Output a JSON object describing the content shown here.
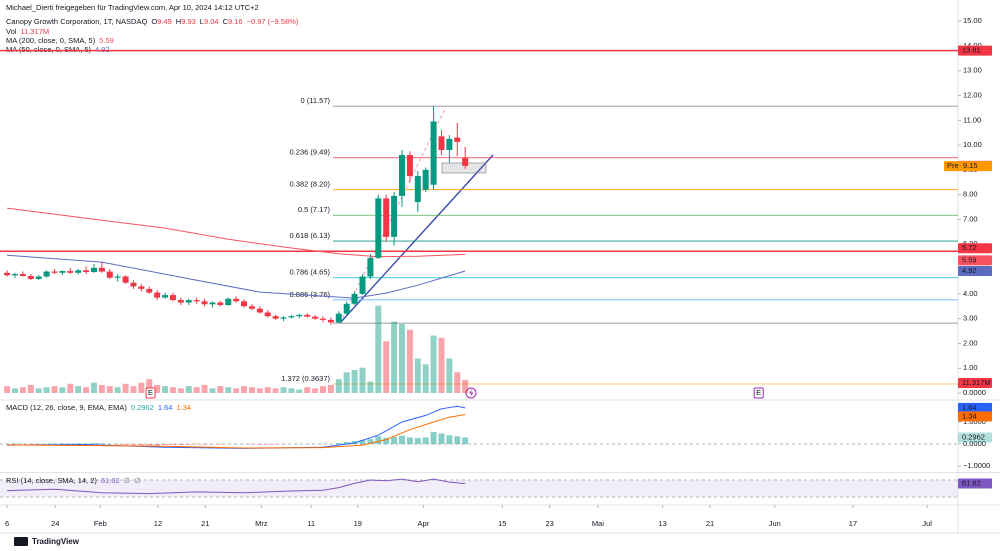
{
  "header": {
    "shared_by": "Michael_Dierti freigegeben für TradingView.com, Apr 10, 2024 14:12 UTC+2",
    "footer": "TradingView"
  },
  "chart_data": [
    {
      "type": "candlestick",
      "title": "Canopy Growth Corporation, 1T, NASDAQ",
      "ohlc_letters": [
        "O",
        "H",
        "L",
        "C"
      ],
      "change": "−0.97 (−9.58%)",
      "up_color": "#089981",
      "down_color": "#f23645",
      "x": [
        0,
        1,
        2,
        3,
        4,
        5,
        6,
        7,
        8,
        9,
        10,
        11,
        12,
        13,
        14,
        15,
        16,
        17,
        18,
        19,
        20,
        21,
        22,
        23,
        24,
        25,
        26,
        27,
        28,
        29,
        30,
        31,
        32,
        33,
        34,
        35,
        36,
        37,
        38,
        39,
        40,
        41,
        42,
        43,
        44,
        45,
        46,
        47,
        48,
        49,
        50,
        51,
        52,
        53,
        54,
        55,
        56,
        57,
        58
      ],
      "ohlc": [
        [
          4.85,
          4.95,
          4.7,
          4.75
        ],
        [
          4.75,
          4.85,
          4.65,
          4.8
        ],
        [
          4.8,
          4.9,
          4.7,
          4.72
        ],
        [
          4.72,
          4.8,
          4.55,
          4.6
        ],
        [
          4.6,
          4.75,
          4.55,
          4.7
        ],
        [
          4.7,
          4.95,
          4.65,
          4.9
        ],
        [
          4.9,
          5.0,
          4.8,
          4.85
        ],
        [
          4.85,
          4.95,
          4.75,
          4.92
        ],
        [
          4.92,
          5.05,
          4.8,
          4.85
        ],
        [
          4.85,
          5.0,
          4.78,
          4.95
        ],
        [
          4.95,
          5.1,
          4.8,
          4.88
        ],
        [
          4.88,
          5.2,
          4.85,
          5.05
        ],
        [
          5.05,
          5.28,
          4.85,
          4.9
        ],
        [
          4.9,
          5.0,
          4.6,
          4.65
        ],
        [
          4.65,
          4.8,
          4.5,
          4.7
        ],
        [
          4.7,
          4.75,
          4.4,
          4.45
        ],
        [
          4.45,
          4.55,
          4.2,
          4.3
        ],
        [
          4.3,
          4.4,
          4.1,
          4.2
        ],
        [
          4.2,
          4.3,
          4.0,
          4.05
        ],
        [
          4.05,
          4.15,
          3.75,
          3.85
        ],
        [
          3.85,
          4.05,
          3.8,
          3.95
        ],
        [
          3.95,
          4.05,
          3.7,
          3.75
        ],
        [
          3.75,
          3.85,
          3.55,
          3.65
        ],
        [
          3.65,
          3.8,
          3.55,
          3.75
        ],
        [
          3.75,
          3.85,
          3.6,
          3.7
        ],
        [
          3.7,
          3.8,
          3.5,
          3.58
        ],
        [
          3.58,
          3.7,
          3.45,
          3.65
        ],
        [
          3.65,
          3.72,
          3.5,
          3.55
        ],
        [
          3.55,
          3.85,
          3.52,
          3.8
        ],
        [
          3.8,
          3.9,
          3.65,
          3.7
        ],
        [
          3.7,
          3.78,
          3.45,
          3.5
        ],
        [
          3.5,
          3.6,
          3.35,
          3.4
        ],
        [
          3.4,
          3.5,
          3.2,
          3.25
        ],
        [
          3.25,
          3.35,
          3.05,
          3.1
        ],
        [
          3.1,
          3.15,
          2.95,
          3.0
        ],
        [
          3.0,
          3.1,
          2.9,
          3.05
        ],
        [
          3.05,
          3.15,
          3.0,
          3.1
        ],
        [
          3.1,
          3.2,
          3.02,
          3.15
        ],
        [
          3.15,
          3.22,
          3.05,
          3.08
        ],
        [
          3.08,
          3.15,
          2.95,
          3.0
        ],
        [
          3.0,
          3.1,
          2.85,
          2.95
        ],
        [
          2.95,
          3.05,
          2.75,
          2.85
        ],
        [
          2.85,
          3.3,
          2.82,
          3.2
        ],
        [
          3.2,
          3.7,
          3.15,
          3.6
        ],
        [
          3.6,
          4.1,
          3.55,
          4.0
        ],
        [
          4.0,
          4.8,
          3.95,
          4.7
        ],
        [
          4.7,
          5.6,
          4.6,
          5.45
        ],
        [
          5.45,
          8.0,
          5.4,
          7.85
        ],
        [
          7.85,
          8.0,
          6.1,
          6.3
        ],
        [
          6.3,
          8.1,
          5.95,
          7.95
        ],
        [
          7.95,
          9.8,
          7.5,
          9.6
        ],
        [
          9.6,
          9.75,
          8.5,
          8.75
        ],
        [
          7.7,
          8.95,
          7.3,
          8.75
        ],
        [
          8.2,
          9.1,
          8.1,
          9.0
        ],
        [
          8.4,
          11.57,
          8.2,
          10.95
        ],
        [
          10.35,
          10.6,
          9.6,
          9.8
        ],
        [
          9.8,
          10.4,
          9.3,
          10.25
        ],
        [
          10.3,
          10.9,
          9.55,
          10.13
        ],
        [
          9.49,
          9.93,
          9.04,
          9.16
        ]
      ],
      "xlim": [
        -0.9,
        120.4
      ],
      "xticks": [
        {
          "value": 0,
          "label": "6"
        },
        {
          "value": 6.1,
          "label": "24"
        },
        {
          "value": 11.8,
          "label": "Feb"
        },
        {
          "value": 19.1,
          "label": "12"
        },
        {
          "value": 25.1,
          "label": "21"
        },
        {
          "value": 32.2,
          "label": "Mrz"
        },
        {
          "value": 38.5,
          "label": "11"
        },
        {
          "value": 44.4,
          "label": "19"
        },
        {
          "value": 52.7,
          "label": "Apr"
        },
        {
          "value": 62.7,
          "label": "15"
        },
        {
          "value": 68.7,
          "label": "23"
        },
        {
          "value": 74.8,
          "label": "Mai"
        },
        {
          "value": 83.0,
          "label": "13"
        },
        {
          "value": 89.0,
          "label": "21"
        },
        {
          "value": 97.2,
          "label": "Jun"
        },
        {
          "value": 107.1,
          "label": "17"
        },
        {
          "value": 116.5,
          "label": "Jul"
        }
      ],
      "ylim": [
        -0.28,
        15.85
      ],
      "yticks": [
        {
          "value": 15,
          "label": "15.00"
        },
        {
          "value": 14,
          "label": "14.00"
        },
        {
          "value": 13,
          "label": "13.00"
        },
        {
          "value": 12,
          "label": "12.00"
        },
        {
          "value": 11,
          "label": "11.00"
        },
        {
          "value": 10,
          "label": "10.00"
        },
        {
          "value": 9,
          "label": "9.00"
        },
        {
          "value": 8,
          "label": "8.00"
        },
        {
          "value": 7,
          "label": "7.00"
        },
        {
          "value": 6,
          "label": "6.00"
        },
        {
          "value": 5,
          "label": "5.00"
        },
        {
          "value": 4,
          "label": "4.00"
        },
        {
          "value": 3,
          "label": "3.00"
        },
        {
          "value": 2,
          "label": "2.00"
        },
        {
          "value": 1,
          "label": "1.00"
        },
        {
          "value": 0,
          "label": "0.0000"
        }
      ],
      "series": [
        {
          "name": "MA (200, close, 0, SMA, 5)",
          "color": "#f7525f",
          "x": [
            0,
            10,
            20,
            28,
            36,
            42,
            47,
            52,
            58
          ],
          "values": [
            7.46,
            7.05,
            6.65,
            6.2,
            5.85,
            5.62,
            5.5,
            5.52,
            5.59
          ]
        },
        {
          "name": "MA (50, close, 0, SMA, 5)",
          "color": "#5c6bc0",
          "x": [
            0,
            12,
            24,
            32,
            40,
            44,
            48,
            52,
            58
          ],
          "values": [
            5.56,
            5.28,
            4.55,
            4.07,
            3.91,
            3.83,
            4.03,
            4.35,
            4.92
          ]
        }
      ],
      "levels": [
        {
          "label": "0 (11.57)",
          "value": 11.57,
          "color": "#787b86"
        },
        {
          "label": "0.236 (9.49)",
          "value": 9.49,
          "color": "#f23645"
        },
        {
          "label": "0.382 (8.20)",
          "value": 8.2,
          "color": "#ff9800"
        },
        {
          "label": "0.5 (7.17)",
          "value": 7.17,
          "color": "#4caf50"
        },
        {
          "label": "0.618 (6.13)",
          "value": 6.13,
          "color": "#089981"
        },
        {
          "label": "0.786 (4.65)",
          "value": 4.65,
          "color": "#00bcd4"
        },
        {
          "label": "0.886 (3.76)",
          "value": 3.76,
          "color": "#64b5f6"
        },
        {
          "label": null,
          "value": 2.82,
          "color": "#787b86"
        },
        {
          "label": "1.372 (0.3637)",
          "value": 0.3637,
          "color": "#ffb74d"
        }
      ],
      "hlines": [
        {
          "value": 13.81,
          "color": "#f23645"
        },
        {
          "value": 5.72,
          "color": "#f23645"
        }
      ],
      "premarket": {
        "label": "Pre",
        "value": 9.15,
        "color": "#ff9800"
      },
      "earnings": {
        "label": "E",
        "x": [
          18.1,
          95.1
        ]
      }
    },
    {
      "type": "bar",
      "name": "Vol",
      "last_label": "11.317M",
      "values": [
        6,
        4,
        5,
        7,
        4,
        5,
        6,
        5,
        8,
        6,
        5,
        9,
        7,
        6,
        5,
        8,
        6,
        9,
        12,
        7,
        6,
        5,
        4,
        6,
        5,
        7,
        4,
        6,
        5,
        4,
        6,
        5,
        4,
        5,
        4,
        5,
        4,
        3,
        5,
        4,
        6,
        7,
        12,
        18,
        20,
        22,
        10,
        76,
        45,
        62,
        60,
        55,
        30,
        25,
        50,
        48,
        30,
        18,
        11.317
      ]
    },
    {
      "type": "macd",
      "title": "MACD (12, 26, close, 9, EMA, EMA)",
      "ylim": [
        -1.27,
        1.955
      ],
      "yticks": [
        {
          "value": 1,
          "label": "1.0000"
        },
        {
          "value": 0,
          "label": "0.0000"
        },
        {
          "value": -1,
          "label": "−1.0000"
        }
      ],
      "histogram": {
        "color": "#26a69a",
        "values": [
          0.01,
          0.02,
          0.01,
          -0.01,
          -0.02,
          0.01,
          0.02,
          0.03,
          0.02,
          0.03,
          0.02,
          0.04,
          0.03,
          -0.01,
          -0.03,
          -0.04,
          -0.05,
          -0.05,
          -0.06,
          -0.06,
          -0.04,
          -0.04,
          -0.05,
          -0.03,
          -0.02,
          -0.03,
          -0.02,
          -0.02,
          0.01,
          0.01,
          -0.01,
          -0.02,
          -0.03,
          -0.03,
          -0.02,
          -0.01,
          0.0,
          0.01,
          0.01,
          0.01,
          0.01,
          0.0,
          0.05,
          0.09,
          0.13,
          0.18,
          0.22,
          0.35,
          0.28,
          0.32,
          0.38,
          0.3,
          0.27,
          0.3,
          0.55,
          0.48,
          0.4,
          0.35,
          0.2962
        ]
      },
      "series": [
        {
          "name": "MACD",
          "color": "#2962ff",
          "x": [
            0,
            10,
            20,
            30,
            40,
            44,
            47,
            50,
            53,
            55,
            57,
            58
          ],
          "values": [
            -0.05,
            -0.02,
            -0.15,
            -0.2,
            -0.15,
            0.05,
            0.4,
            1.0,
            1.3,
            1.6,
            1.72,
            1.64
          ]
        },
        {
          "name": "Signal",
          "color": "#ff6d00",
          "x": [
            0,
            20,
            30,
            40,
            45,
            48,
            51,
            54,
            56,
            58
          ],
          "values": [
            -0.04,
            -0.1,
            -0.18,
            -0.16,
            -0.05,
            0.2,
            0.65,
            1.0,
            1.22,
            1.34
          ]
        }
      ]
    },
    {
      "type": "line",
      "title": "RSI (14, close, SMA, 14, 2)",
      "color": "#7e57c2",
      "na_labels": [
        "∅",
        "∅"
      ],
      "ylim": [
        13.5,
        84.1
      ],
      "band": [
        30,
        70
      ],
      "x": [
        0,
        6,
        12,
        18,
        24,
        30,
        36,
        40,
        42,
        44,
        46,
        48,
        50,
        52,
        54,
        56,
        58
      ],
      "values": [
        45,
        48,
        40,
        38,
        42,
        40,
        44,
        46,
        52,
        62,
        70,
        68,
        72,
        66,
        72,
        65,
        61.62
      ]
    }
  ]
}
